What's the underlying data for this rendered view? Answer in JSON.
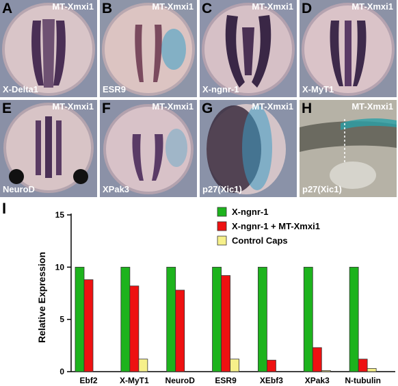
{
  "panels": [
    {
      "label": "A",
      "construct": "MT-Xmxi1",
      "probe": "X-Delta1",
      "bg": "#8a91a8"
    },
    {
      "label": "B",
      "construct": "MT-Xmxi1",
      "probe": "ESR9",
      "bg": "#8e95a8"
    },
    {
      "label": "C",
      "construct": "MT-Xmxi1",
      "probe": "X-ngnr-1",
      "bg": "#8d93aa"
    },
    {
      "label": "D",
      "construct": "MT-Xmxi1",
      "probe": "X-MyT1",
      "bg": "#8c92a6"
    },
    {
      "label": "E",
      "construct": "MT-Xmxi1",
      "probe": "NeuroD",
      "bg": "#8a90a6"
    },
    {
      "label": "F",
      "construct": "MT-Xmxi1",
      "probe": "XPak3",
      "bg": "#8b91a7"
    },
    {
      "label": "G",
      "construct": "MT-Xmxi1",
      "probe": "p27(Xic1)",
      "bg": "#8a92a8"
    },
    {
      "label": "H",
      "construct": "MT-Xmxi1",
      "probe": "p27(Xic1)",
      "bg": "#b6b2a6"
    }
  ],
  "chart_label": "I",
  "chart_data": {
    "type": "bar",
    "categories": [
      "Ebf2",
      "X-MyT1",
      "NeuroD",
      "ESR9",
      "XEbf3",
      "XPak3",
      "N-tubulin"
    ],
    "series": [
      {
        "name": "X-ngnr-1",
        "color": "#1db31d",
        "values": [
          10,
          10,
          10,
          10,
          10,
          10,
          10
        ]
      },
      {
        "name": "X-ngnr-1 + MT-Xmxi1",
        "color": "#ee1111",
        "values": [
          8.8,
          8.2,
          7.8,
          9.2,
          1.1,
          2.3,
          1.2
        ]
      },
      {
        "name": "Control Caps",
        "color": "#f6f08a",
        "values": [
          0,
          1.2,
          0,
          1.2,
          0,
          0.1,
          0.3
        ]
      }
    ],
    "ylabel": "Relative Expression",
    "xlabel": "",
    "ylim": [
      0,
      15
    ],
    "yticks": [
      0,
      5,
      10,
      15
    ],
    "legend_position": "top-right",
    "grid": false
  }
}
